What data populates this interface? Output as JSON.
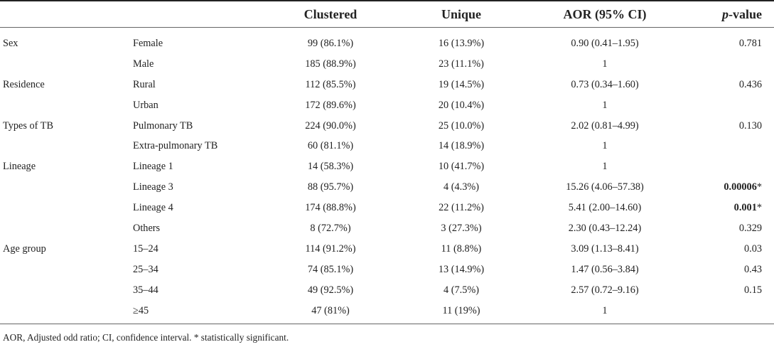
{
  "table": {
    "headers": {
      "group": "",
      "sub": "",
      "clustered": "Clustered",
      "unique": "Unique",
      "aor": "AOR (95% CI)",
      "p_italic": "p",
      "p_rest": "-value"
    },
    "rows": [
      {
        "group": "Sex",
        "sub": "Female",
        "clustered": "99 (86.1%)",
        "unique": "16 (13.9%)",
        "aor": "0.90 (0.41–1.95)",
        "p": "0.781",
        "p_bold": false
      },
      {
        "group": "",
        "sub": "Male",
        "clustered": "185 (88.9%)",
        "unique": "23 (11.1%)",
        "aor": "1",
        "p": "",
        "p_bold": false
      },
      {
        "group": "Residence",
        "sub": "Rural",
        "clustered": "112 (85.5%)",
        "unique": "19 (14.5%)",
        "aor": "0.73 (0.34–1.60)",
        "p": "0.436",
        "p_bold": false
      },
      {
        "group": "",
        "sub": "Urban",
        "clustered": "172 (89.6%)",
        "unique": "20 (10.4%)",
        "aor": "1",
        "p": "",
        "p_bold": false
      },
      {
        "group": "Types of TB",
        "sub": "Pulmonary TB",
        "clustered": "224 (90.0%)",
        "unique": "25 (10.0%)",
        "aor": "2.02 (0.81–4.99)",
        "p": "0.130",
        "p_bold": false
      },
      {
        "group": "",
        "sub": "Extra-pulmonary TB",
        "clustered": "60 (81.1%)",
        "unique": "14 (18.9%)",
        "aor": "1",
        "p": "",
        "p_bold": false
      },
      {
        "group": "Lineage",
        "sub": "Lineage 1",
        "clustered": "14 (58.3%)",
        "unique": "10 (41.7%)",
        "aor": "1",
        "p": "",
        "p_bold": false
      },
      {
        "group": "",
        "sub": "Lineage 3",
        "clustered": "88 (95.7%)",
        "unique": "4 (4.3%)",
        "aor": "15.26 (4.06–57.38)",
        "p": "0.00006",
        "p_mark": "*",
        "p_bold": true
      },
      {
        "group": "",
        "sub": "Lineage 4",
        "clustered": "174 (88.8%)",
        "unique": "22 (11.2%)",
        "aor": "5.41 (2.00–14.60)",
        "p": "0.001",
        "p_mark": "*",
        "p_bold": true
      },
      {
        "group": "",
        "sub": "Others",
        "clustered": "8 (72.7%)",
        "unique": "3 (27.3%)",
        "aor": "2.30 (0.43–12.24)",
        "p": "0.329",
        "p_bold": false
      },
      {
        "group": "Age group",
        "sub": "15–24",
        "clustered": "114 (91.2%)",
        "unique": "11 (8.8%)",
        "aor": "3.09 (1.13–8.41)",
        "p": "0.03",
        "p_bold": false
      },
      {
        "group": "",
        "sub": "25–34",
        "clustered": "74 (85.1%)",
        "unique": "13 (14.9%)",
        "aor": "1.47 (0.56–3.84)",
        "p": "0.43",
        "p_bold": false
      },
      {
        "group": "",
        "sub": "35–44",
        "clustered": "49 (92.5%)",
        "unique": "4 (7.5%)",
        "aor": "2.57 (0.72–9.16)",
        "p": "0.15",
        "p_bold": false
      },
      {
        "group": "",
        "sub": "≥45",
        "clustered": "47 (81%)",
        "unique": "11 (19%)",
        "aor": "1",
        "p": "",
        "p_bold": false
      }
    ]
  },
  "footnote": "AOR, Adjusted odd ratio; CI, confidence interval. * statistically significant."
}
